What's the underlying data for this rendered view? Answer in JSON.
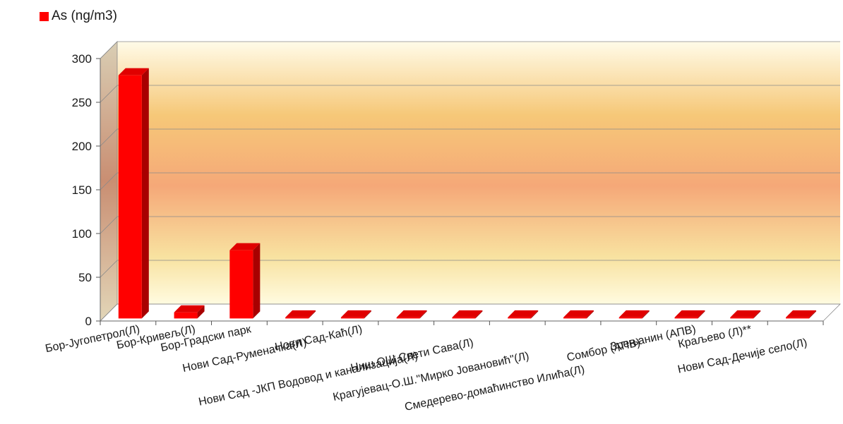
{
  "chart_data": {
    "type": "bar",
    "title": "",
    "xlabel": "",
    "ylabel": "",
    "ylim": [
      0,
      300
    ],
    "yticks": [
      0,
      50,
      100,
      150,
      200,
      250,
      300
    ],
    "grid": true,
    "legend_position": "top-left",
    "categories": [
      "Бор-Југопетрол(Л)",
      "Бор-Кривељ(Л)",
      "Бор-Градски парк",
      "Нови Сад-Руменачка(Л)",
      "Нови Сад-Каћ(Л)",
      "Нови Сад -ЈКП Водовод и канализација(Л)",
      "Ниш ОШ Свети  Сава(Л)",
      "Крагујевац-О.Ш.\"Мирко Јовановић\"(Л)",
      "Смедерево-домаћинство  Илића(Л)",
      "Сомбор  (АПВ)",
      "Зрењанин (АПВ)",
      "Краљево (Л)**",
      "Нови Сад-Дечије село(Л)"
    ],
    "series": [
      {
        "name": "As (ng/m3)",
        "color": "#ff0000",
        "values": [
          278,
          7,
          78,
          0,
          0,
          0,
          0,
          0,
          0,
          0,
          0,
          0,
          0
        ]
      }
    ]
  }
}
